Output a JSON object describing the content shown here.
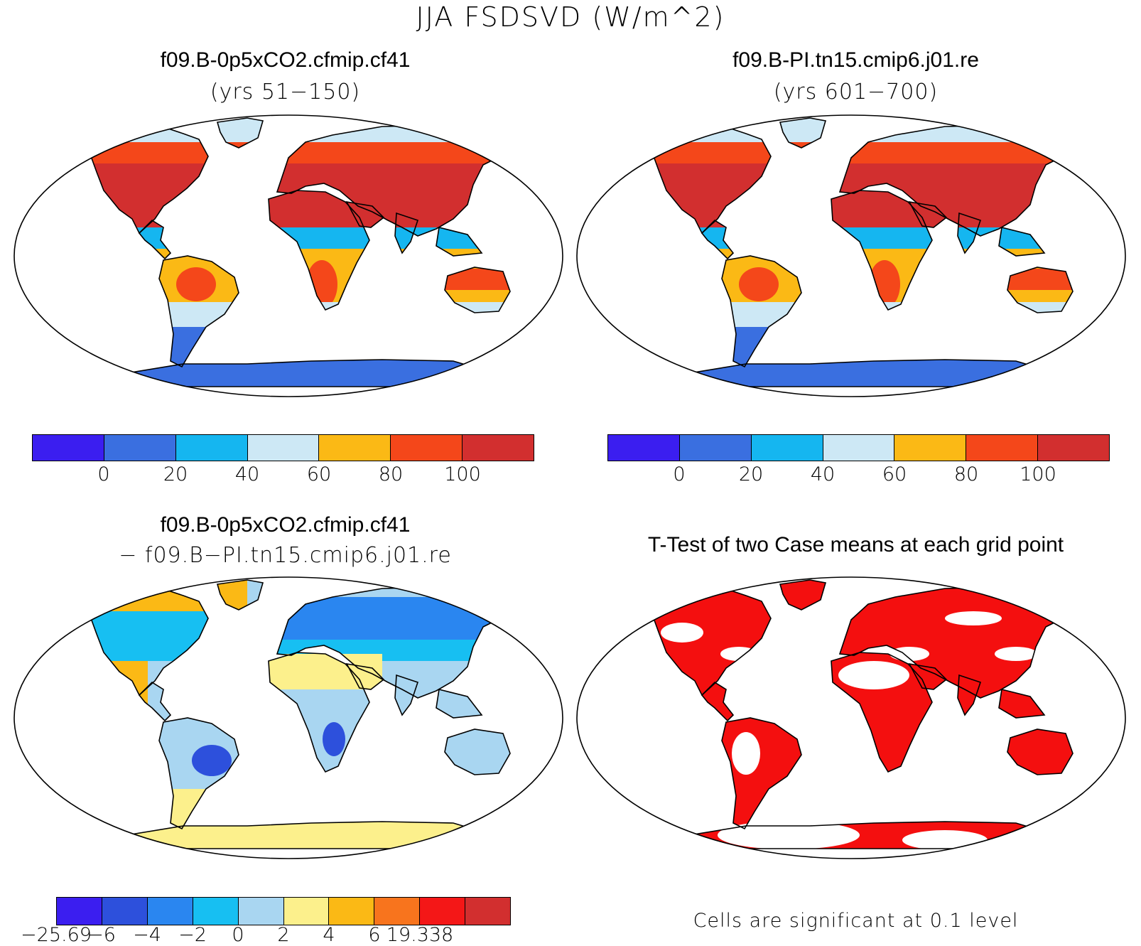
{
  "title": "JJA FSDSVD (W/m^2)",
  "panels": [
    {
      "id": "top-left",
      "title": "f09.B-0p5xCO2.cfmip.cf41",
      "subtitle": "(yrs 51−150)",
      "scale": "abs"
    },
    {
      "id": "top-right",
      "title": "f09.B-PI.tn15.cmip6.j01.re",
      "subtitle": "(yrs 601−700)",
      "scale": "abs"
    },
    {
      "id": "bottom-left",
      "title": "f09.B-0p5xCO2.cfmip.cf41",
      "subtitle": "− f09.B−PI.tn15.cmip6.j01.re",
      "scale": "diff"
    },
    {
      "id": "bottom-right",
      "title": "T-Test of two Case means at each grid point",
      "scale": "ttest"
    }
  ],
  "colorbar_abs": {
    "colors": [
      "#3b1ef0",
      "#3a6fe0",
      "#15b6f0",
      "#cde8f5",
      "#fbb915",
      "#f4471a",
      "#d22f2f"
    ],
    "ticks": [
      "0",
      "20",
      "40",
      "60",
      "80",
      "100"
    ]
  },
  "colorbar_diff": {
    "colors": [
      "#3b1ef0",
      "#2d50dc",
      "#2a86f0",
      "#17bff2",
      "#a9d6f1",
      "#fcf08c",
      "#fbb915",
      "#f8741d",
      "#f41717",
      "#d22f2f"
    ],
    "ticks": [
      "−25.69",
      "−6",
      "−4",
      "−2",
      "0",
      "2",
      "4",
      "6",
      "19.338"
    ]
  },
  "ttest_color": "#f40f0f",
  "ttest_note": "Cells are significant at 0.1 level"
}
